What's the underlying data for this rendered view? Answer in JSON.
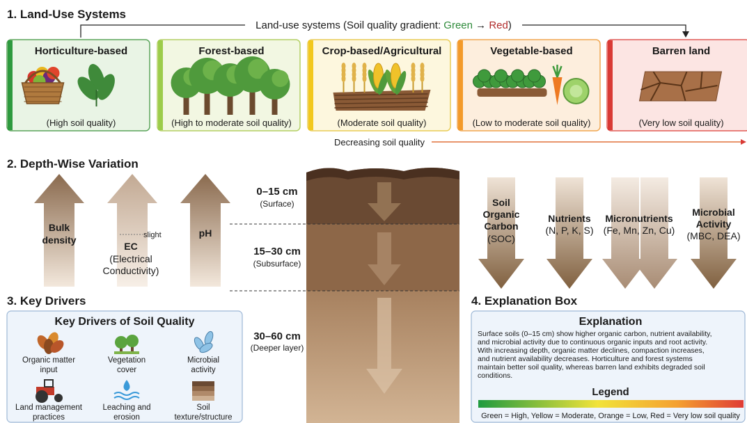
{
  "land_use": {
    "heading": "1. Land-Use Systems",
    "gradient_label": {
      "prefix": "Land-use systems (Soil quality gradient: ",
      "green": "Green",
      "arrow": " → ",
      "red": "Red",
      "suffix": ")"
    },
    "systems": [
      {
        "title": "Horticulture-based",
        "caption": "(High soil quality)"
      },
      {
        "title": "Forest-based",
        "caption": "(High to moderate soil quality)"
      },
      {
        "title": "Crop-based/Agricultural",
        "caption": "(Moderate soil quality)"
      },
      {
        "title": "Vegetable-based",
        "caption": "(Low to moderate soil quality)"
      },
      {
        "title": "Barren land",
        "caption": "(Very low soil quality)"
      }
    ],
    "trend_label": "Decreasing soil quality"
  },
  "depth": {
    "heading": "2. Depth-Wise Variation",
    "increasing_properties": [
      {
        "name": [
          "Bulk",
          "density"
        ]
      },
      {
        "name": [
          "EC"
        ],
        "detail": [
          "(Electrical",
          "Conductivity)"
        ],
        "note": "slight"
      },
      {
        "name": [
          "pH"
        ]
      }
    ],
    "layers": [
      {
        "depth": "0–15 cm",
        "label": "(Surface)"
      },
      {
        "depth": "15–30 cm",
        "label": "(Subsurface)"
      },
      {
        "depth": "30–60 cm",
        "label": "(Deeper layer)"
      }
    ],
    "decreasing_properties": [
      {
        "name": [
          "Soil",
          "Organic",
          "Carbon"
        ],
        "detail": [
          "(SOC)"
        ]
      },
      {
        "name": [
          "Nutrients"
        ],
        "detail": [
          "(N, P, K, S)"
        ]
      },
      {
        "name": [
          "Micronutrients"
        ],
        "detail": [
          "(Fe, Mn, Zn, Cu)"
        ]
      },
      {
        "name": [
          "Microbial",
          "Activity"
        ],
        "detail": [
          "(MBC, DEA)"
        ]
      }
    ]
  },
  "drivers": {
    "heading": "3. Key Drivers",
    "box_title": "Key Drivers of Soil Quality",
    "items": [
      [
        "Organic matter",
        "input"
      ],
      [
        "Vegetation",
        "cover"
      ],
      [
        "Microbial",
        "activity"
      ],
      [
        "Land management",
        "practices"
      ],
      [
        "Leaching and",
        "erosion"
      ],
      [
        "Soil",
        "texture/structure"
      ]
    ]
  },
  "explanation": {
    "heading": "4. Explanation Box",
    "box_title": "Explanation",
    "text": [
      "Surface soils (0–15 cm) show higher organic carbon, nutrient availability,",
      "and microbial activity due to continuous organic inputs and root activity.",
      "With increasing depth, organic matter declines, compaction increases,",
      "and nutrient availability decreases. Horticulture and forest systems",
      "maintain better soil quality, whereas barren land exhibits degraded soil",
      "conditions."
    ],
    "legend_title": "Legend",
    "legend_caption": "Green = High, Yellow = Moderate, Orange = Low, Red = Very low soil quality"
  }
}
